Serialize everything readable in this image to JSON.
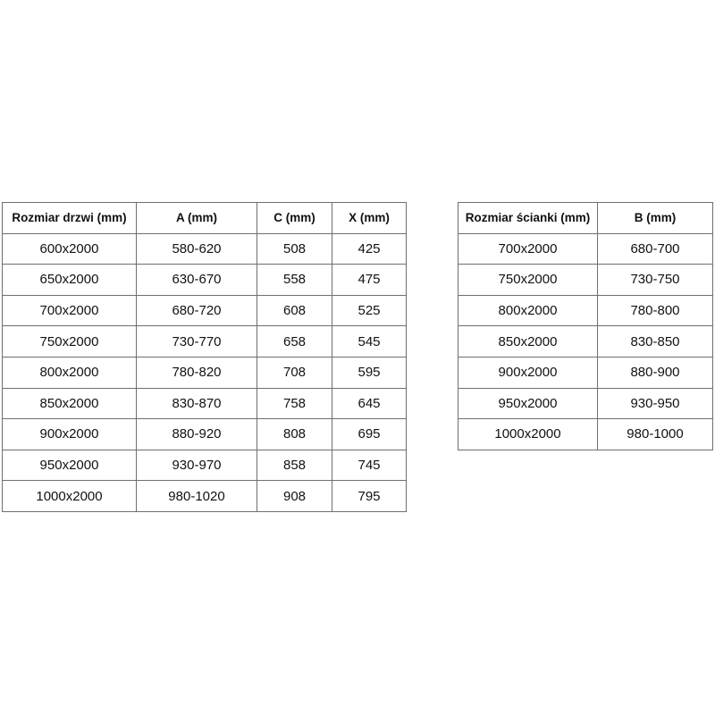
{
  "doors_table": {
    "headers": [
      "Rozmiar drzwi (mm)",
      "A (mm)",
      "C (mm)",
      "X (mm)"
    ],
    "rows": [
      [
        "600x2000",
        "580-620",
        "508",
        "425"
      ],
      [
        "650x2000",
        "630-670",
        "558",
        "475"
      ],
      [
        "700x2000",
        "680-720",
        "608",
        "525"
      ],
      [
        "750x2000",
        "730-770",
        "658",
        "545"
      ],
      [
        "800x2000",
        "780-820",
        "708",
        "595"
      ],
      [
        "850x2000",
        "830-870",
        "758",
        "645"
      ],
      [
        "900x2000",
        "880-920",
        "808",
        "695"
      ],
      [
        "950x2000",
        "930-970",
        "858",
        "745"
      ],
      [
        "1000x2000",
        "980-1020",
        "908",
        "795"
      ]
    ]
  },
  "wall_table": {
    "headers": [
      "Rozmiar ścianki (mm)",
      "B (mm)"
    ],
    "rows": [
      [
        "700x2000",
        "680-700"
      ],
      [
        "750x2000",
        "730-750"
      ],
      [
        "800x2000",
        "780-800"
      ],
      [
        "850x2000",
        "830-850"
      ],
      [
        "900x2000",
        "880-900"
      ],
      [
        "950x2000",
        "930-950"
      ],
      [
        "1000x2000",
        "980-1000"
      ]
    ]
  }
}
